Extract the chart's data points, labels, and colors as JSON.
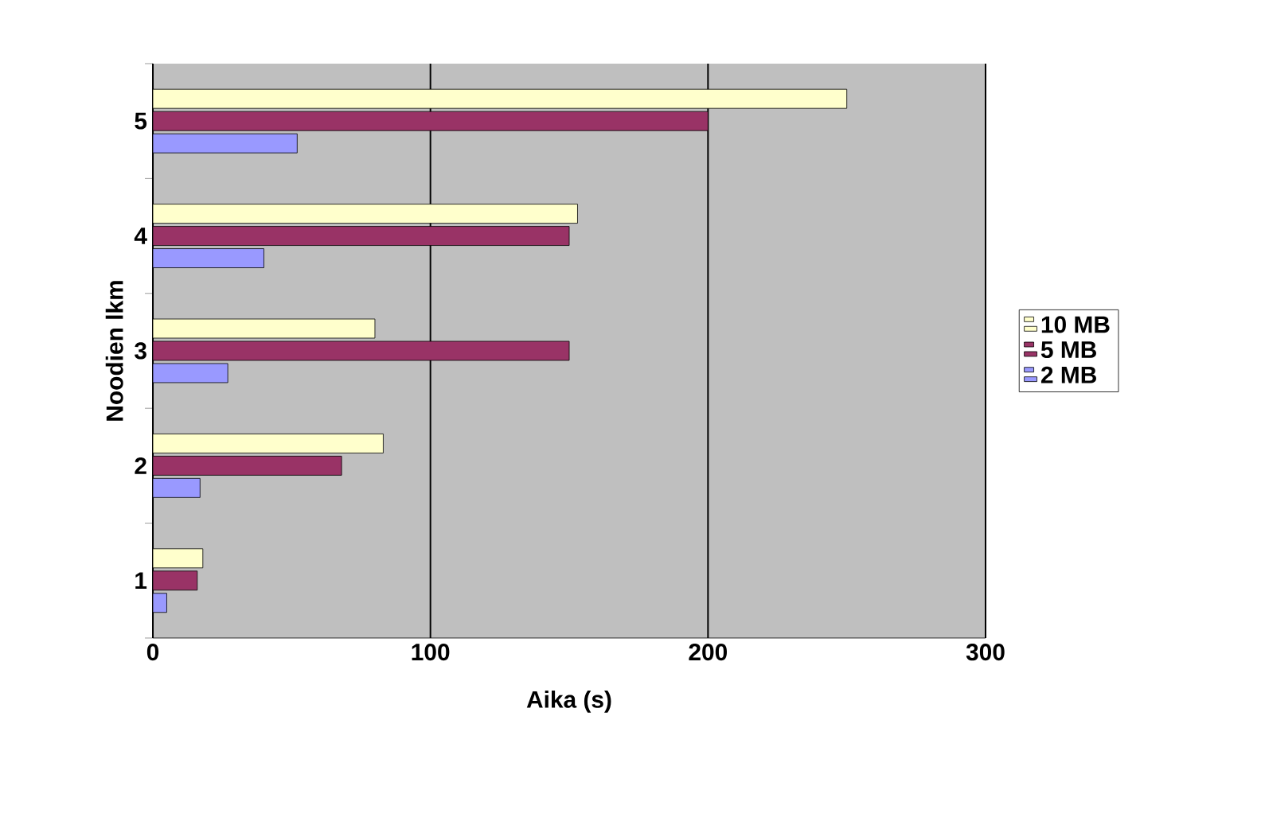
{
  "chart_data": {
    "type": "bar",
    "orientation": "horizontal",
    "xlabel": "Aika (s)",
    "ylabel": "Noodien lkm",
    "categories": [
      "5",
      "4",
      "3",
      "2",
      "1"
    ],
    "series": [
      {
        "name": "2 MB",
        "color": "#9999ff",
        "values": [
          52,
          40,
          27,
          17,
          5
        ]
      },
      {
        "name": "5 MB",
        "color": "#993366",
        "values": [
          200,
          150,
          150,
          68,
          16
        ]
      },
      {
        "name": "10 MB",
        "color": "#ffffcc",
        "values": [
          250,
          153,
          80,
          83,
          18
        ]
      }
    ],
    "xlim": [
      0,
      300
    ],
    "xticks": [
      0,
      100,
      200,
      300
    ],
    "grid": "x",
    "legend": "right"
  }
}
